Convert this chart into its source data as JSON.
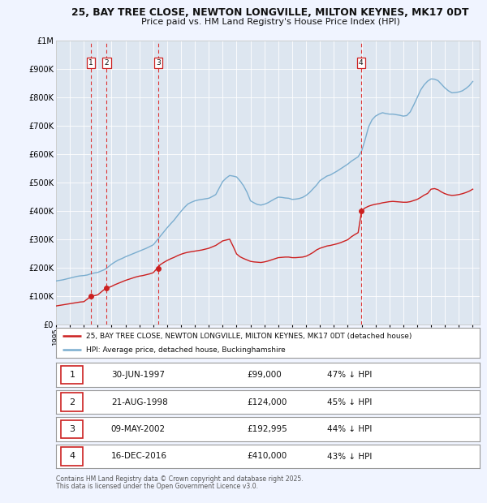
{
  "title_line1": "25, BAY TREE CLOSE, NEWTON LONGVILLE, MILTON KEYNES, MK17 0DT",
  "title_line2": "Price paid vs. HM Land Registry's House Price Index (HPI)",
  "bg_color": "#f0f4ff",
  "plot_bg_color": "#dde6f0",
  "red_line_label": "25, BAY TREE CLOSE, NEWTON LONGVILLE, MILTON KEYNES, MK17 0DT (detached house)",
  "blue_line_label": "HPI: Average price, detached house, Buckinghamshire",
  "footer_line1": "Contains HM Land Registry data © Crown copyright and database right 2025.",
  "footer_line2": "This data is licensed under the Open Government Licence v3.0.",
  "transactions": [
    {
      "num": 1,
      "date": "30-JUN-1997",
      "price": "£99,000",
      "pct": "47%",
      "year": 1997.5
    },
    {
      "num": 2,
      "date": "21-AUG-1998",
      "price": "£124,000",
      "pct": "45%",
      "year": 1998.65
    },
    {
      "num": 3,
      "date": "09-MAY-2002",
      "price": "£192,995",
      "pct": "44%",
      "year": 2002.36
    },
    {
      "num": 4,
      "date": "16-DEC-2016",
      "price": "£410,000",
      "pct": "43%",
      "year": 2016.96
    }
  ],
  "hpi_years": [
    1995.0,
    1995.25,
    1995.5,
    1995.75,
    1996.0,
    1996.25,
    1996.5,
    1996.75,
    1997.0,
    1997.25,
    1997.5,
    1997.75,
    1998.0,
    1998.25,
    1998.5,
    1998.75,
    1999.0,
    1999.25,
    1999.5,
    1999.75,
    2000.0,
    2000.25,
    2000.5,
    2000.75,
    2001.0,
    2001.25,
    2001.5,
    2001.75,
    2002.0,
    2002.25,
    2002.5,
    2002.75,
    2003.0,
    2003.25,
    2003.5,
    2003.75,
    2004.0,
    2004.25,
    2004.5,
    2004.75,
    2005.0,
    2005.25,
    2005.5,
    2005.75,
    2006.0,
    2006.25,
    2006.5,
    2006.75,
    2007.0,
    2007.25,
    2007.5,
    2007.75,
    2008.0,
    2008.25,
    2008.5,
    2008.75,
    2009.0,
    2009.25,
    2009.5,
    2009.75,
    2010.0,
    2010.25,
    2010.5,
    2010.75,
    2011.0,
    2011.25,
    2011.5,
    2011.75,
    2012.0,
    2012.25,
    2012.5,
    2012.75,
    2013.0,
    2013.25,
    2013.5,
    2013.75,
    2014.0,
    2014.25,
    2014.5,
    2014.75,
    2015.0,
    2015.25,
    2015.5,
    2015.75,
    2016.0,
    2016.25,
    2016.5,
    2016.75,
    2017.0,
    2017.25,
    2017.5,
    2017.75,
    2018.0,
    2018.25,
    2018.5,
    2018.75,
    2019.0,
    2019.25,
    2019.5,
    2019.75,
    2020.0,
    2020.25,
    2020.5,
    2020.75,
    2021.0,
    2021.25,
    2021.5,
    2021.75,
    2022.0,
    2022.25,
    2022.5,
    2022.75,
    2023.0,
    2023.25,
    2023.5,
    2023.75,
    2024.0,
    2024.25,
    2024.5,
    2024.75,
    2025.0
  ],
  "hpi_values": [
    153000,
    155000,
    157000,
    160000,
    163000,
    166000,
    169000,
    171000,
    172000,
    174000,
    178000,
    181000,
    183000,
    188000,
    193000,
    202000,
    212000,
    220000,
    227000,
    232000,
    238000,
    243000,
    248000,
    253000,
    258000,
    263000,
    268000,
    274000,
    280000,
    295000,
    310000,
    325000,
    340000,
    354000,
    367000,
    383000,
    398000,
    412000,
    424000,
    430000,
    435000,
    438000,
    440000,
    442000,
    444000,
    450000,
    457000,
    480000,
    503000,
    515000,
    524000,
    522000,
    519000,
    505000,
    488000,
    465000,
    435000,
    428000,
    422000,
    420000,
    423000,
    428000,
    435000,
    442000,
    448000,
    447000,
    445000,
    444000,
    440000,
    441000,
    443000,
    447000,
    454000,
    464000,
    477000,
    490000,
    506000,
    514000,
    522000,
    526000,
    533000,
    540000,
    548000,
    556000,
    564000,
    574000,
    582000,
    590000,
    610000,
    650000,
    695000,
    720000,
    733000,
    740000,
    745000,
    742000,
    740000,
    740000,
    738000,
    736000,
    733000,
    735000,
    748000,
    772000,
    798000,
    825000,
    843000,
    856000,
    864000,
    863000,
    858000,
    845000,
    832000,
    822000,
    815000,
    816000,
    818000,
    822000,
    830000,
    840000,
    855000
  ],
  "red_years": [
    1995.0,
    1995.25,
    1995.5,
    1995.75,
    1996.0,
    1996.25,
    1996.5,
    1996.75,
    1997.0,
    1997.25,
    1997.5,
    1997.75,
    1998.0,
    1998.25,
    1998.5,
    1998.75,
    1999.0,
    1999.25,
    1999.5,
    1999.75,
    2000.0,
    2000.25,
    2000.5,
    2000.75,
    2001.0,
    2001.25,
    2001.5,
    2001.75,
    2002.0,
    2002.25,
    2002.5,
    2002.75,
    2003.0,
    2003.25,
    2003.5,
    2003.75,
    2004.0,
    2004.25,
    2004.5,
    2004.75,
    2005.0,
    2005.25,
    2005.5,
    2005.75,
    2006.0,
    2006.25,
    2006.5,
    2006.75,
    2007.0,
    2007.25,
    2007.5,
    2007.75,
    2008.0,
    2008.25,
    2008.5,
    2008.75,
    2009.0,
    2009.25,
    2009.5,
    2009.75,
    2010.0,
    2010.25,
    2010.5,
    2010.75,
    2011.0,
    2011.25,
    2011.5,
    2011.75,
    2012.0,
    2012.25,
    2012.5,
    2012.75,
    2013.0,
    2013.25,
    2013.5,
    2013.75,
    2014.0,
    2014.25,
    2014.5,
    2014.75,
    2015.0,
    2015.25,
    2015.5,
    2015.75,
    2016.0,
    2016.25,
    2016.5,
    2016.75,
    2017.0,
    2017.25,
    2017.5,
    2017.75,
    2018.0,
    2018.25,
    2018.5,
    2018.75,
    2019.0,
    2019.25,
    2019.5,
    2019.75,
    2020.0,
    2020.25,
    2020.5,
    2020.75,
    2021.0,
    2021.25,
    2021.5,
    2021.75,
    2022.0,
    2022.25,
    2022.5,
    2022.75,
    2023.0,
    2023.25,
    2023.5,
    2023.75,
    2024.0,
    2024.25,
    2024.5,
    2024.75,
    2025.0
  ],
  "red_values": [
    65000,
    67000,
    69000,
    71000,
    73000,
    75000,
    77000,
    79000,
    80000,
    89000,
    99000,
    101000,
    104000,
    114000,
    124000,
    129000,
    134000,
    140000,
    145000,
    150000,
    155000,
    159000,
    163000,
    167000,
    170000,
    172000,
    175000,
    178000,
    182000,
    196000,
    210000,
    218000,
    225000,
    231000,
    236000,
    242000,
    247000,
    251000,
    254000,
    256000,
    258000,
    260000,
    262000,
    265000,
    268000,
    273000,
    278000,
    286000,
    294000,
    297000,
    300000,
    275000,
    248000,
    238000,
    232000,
    227000,
    222000,
    220000,
    219000,
    218000,
    220000,
    223000,
    227000,
    231000,
    235000,
    236000,
    237000,
    237000,
    235000,
    235000,
    236000,
    237000,
    240000,
    246000,
    253000,
    262000,
    268000,
    272000,
    276000,
    278000,
    281000,
    284000,
    288000,
    293000,
    298000,
    308000,
    316000,
    323000,
    400000,
    410000,
    416000,
    420000,
    423000,
    425000,
    428000,
    430000,
    432000,
    433000,
    432000,
    431000,
    430000,
    430000,
    432000,
    436000,
    440000,
    447000,
    455000,
    461000,
    476000,
    478000,
    474000,
    466000,
    460000,
    456000,
    454000,
    455000,
    457000,
    460000,
    464000,
    469000,
    476000
  ],
  "xlim": [
    1995,
    2025.5
  ],
  "ylim": [
    0,
    1000000
  ],
  "yticks": [
    0,
    100000,
    200000,
    300000,
    400000,
    500000,
    600000,
    700000,
    800000,
    900000,
    1000000
  ],
  "ytick_labels": [
    "£0",
    "£100K",
    "£200K",
    "£300K",
    "£400K",
    "£500K",
    "£600K",
    "£700K",
    "£800K",
    "£900K",
    "£1M"
  ],
  "xticks": [
    1995,
    1996,
    1997,
    1998,
    1999,
    2000,
    2001,
    2002,
    2003,
    2004,
    2005,
    2006,
    2007,
    2008,
    2009,
    2010,
    2011,
    2012,
    2013,
    2014,
    2015,
    2016,
    2017,
    2018,
    2019,
    2020,
    2021,
    2022,
    2023,
    2024,
    2025
  ]
}
